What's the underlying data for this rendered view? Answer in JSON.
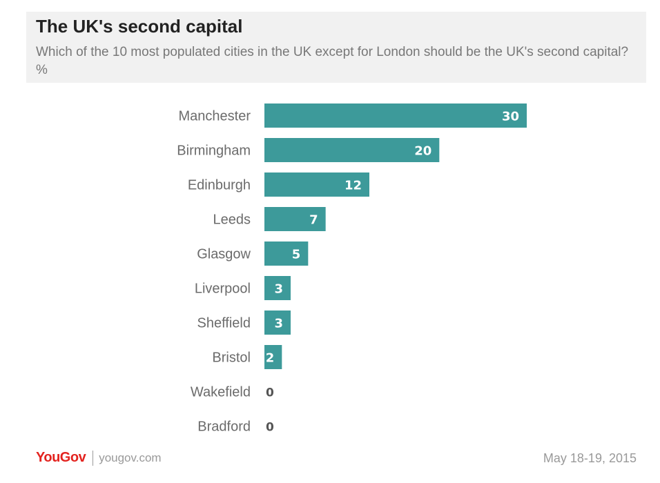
{
  "header": {
    "title": "The UK's second capital",
    "subtitle": "Which of the 10 most populated cities in the UK except for London should be the UK's second capital? %"
  },
  "footer": {
    "logo": "YouGov",
    "url": "yougov.com",
    "date": "May 18-19, 2015"
  },
  "colors": {
    "bar": "#3d9a9a",
    "brand": "#e3231f"
  },
  "chart_data": {
    "type": "bar",
    "orientation": "horizontal",
    "title": "The UK's second capital",
    "subtitle": "Which of the 10 most populated cities in the UK except for London should be the UK's second capital? %",
    "xlabel": "",
    "ylabel": "",
    "categories": [
      "Manchester",
      "Birmingham",
      "Edinburgh",
      "Leeds",
      "Glasgow",
      "Liverpool",
      "Sheffield",
      "Bristol",
      "Wakefield",
      "Bradford"
    ],
    "values": [
      30,
      20,
      12,
      7,
      5,
      3,
      3,
      2,
      0,
      0
    ],
    "xlim": [
      0,
      30
    ],
    "grid": false,
    "legend": "none",
    "data_labels": true
  }
}
